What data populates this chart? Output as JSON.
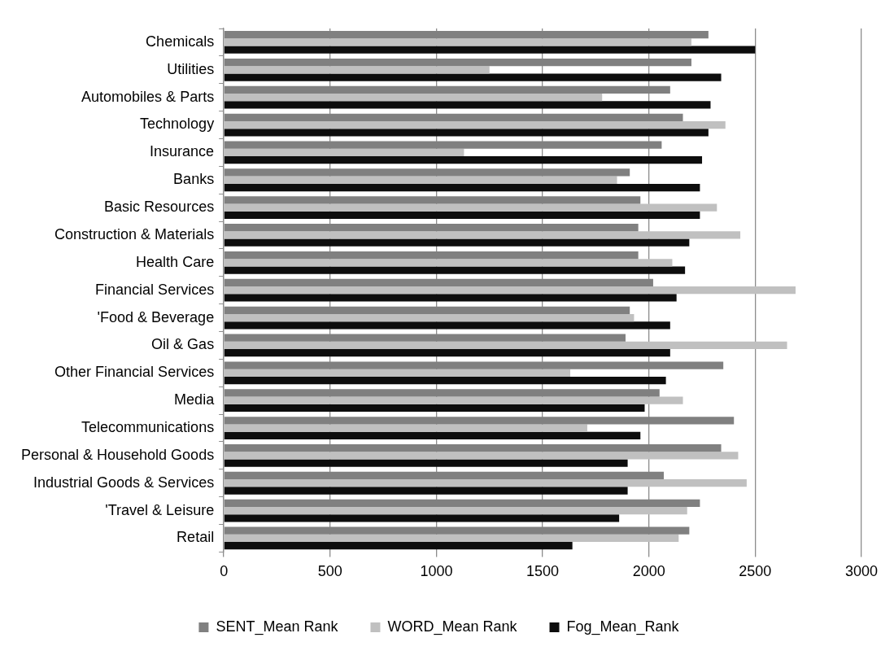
{
  "chart_data": {
    "type": "bar",
    "orientation": "horizontal",
    "categories": [
      "Chemicals",
      "Utilities",
      "Automobiles & Parts",
      "Technology",
      "Insurance",
      "Banks",
      "Basic Resources",
      "Construction & Materials",
      "Health Care",
      "Financial Services",
      "'Food & Beverage",
      "Oil & Gas",
      "Other Financial Services",
      "Media",
      "Telecommunications",
      "Personal & Household Goods",
      "Industrial Goods & Services",
      "'Travel & Leisure",
      "Retail"
    ],
    "series": [
      {
        "name": "SENT_Mean Rank",
        "color": "#808080",
        "values": [
          2280,
          2200,
          2100,
          2160,
          2060,
          1910,
          1960,
          1950,
          1950,
          2020,
          1910,
          1890,
          2350,
          2050,
          2400,
          2340,
          2070,
          2240,
          2190
        ]
      },
      {
        "name": "WORD_Mean Rank",
        "color": "#c0c0c0",
        "values": [
          2200,
          1250,
          1780,
          2360,
          1130,
          1850,
          2320,
          2430,
          2110,
          2690,
          1930,
          2650,
          1630,
          2160,
          1710,
          2420,
          2460,
          2180,
          2140
        ]
      },
      {
        "name": "Fog_Mean_Rank",
        "color": "#0d0d0d",
        "values": [
          2500,
          2340,
          2290,
          2280,
          2250,
          2240,
          2240,
          2190,
          2170,
          2130,
          2100,
          2100,
          2080,
          1980,
          1960,
          1900,
          1900,
          1860,
          1640
        ]
      }
    ],
    "xlim": [
      0,
      3000
    ],
    "xticks": [
      0,
      500,
      1000,
      1500,
      2000,
      2500,
      3000
    ],
    "grid": "x",
    "legend": "bottom"
  }
}
